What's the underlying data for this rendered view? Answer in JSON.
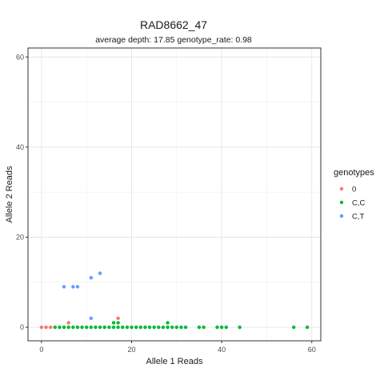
{
  "chart_data": {
    "type": "scatter",
    "title": "RAD8662_47",
    "subtitle": "average depth:  17.85  genotype_rate:  0.98",
    "xlabel": "Allele 1 Reads",
    "ylabel": "Allele 2 Reads",
    "xlim": [
      -3,
      62
    ],
    "ylim": [
      -3,
      62
    ],
    "x_ticks": [
      0,
      20,
      40,
      60
    ],
    "y_ticks": [
      0,
      20,
      40,
      60
    ],
    "x_tick_labels": [
      "0",
      "20",
      "40",
      "60"
    ],
    "y_tick_labels": [
      "0",
      "20",
      "40",
      "60"
    ],
    "grid": true,
    "legend_position": "right",
    "legend_title": "genotypes",
    "series": [
      {
        "name": "0",
        "color": "#F8766D",
        "points": [
          [
            0,
            0
          ],
          [
            1,
            0
          ],
          [
            2,
            0
          ],
          [
            6,
            1
          ],
          [
            17,
            2
          ]
        ]
      },
      {
        "name": "C,C",
        "color": "#00BA38",
        "points": [
          [
            3,
            0
          ],
          [
            4,
            0
          ],
          [
            5,
            0
          ],
          [
            6,
            0
          ],
          [
            7,
            0
          ],
          [
            8,
            0
          ],
          [
            9,
            0
          ],
          [
            10,
            0
          ],
          [
            11,
            0
          ],
          [
            12,
            0
          ],
          [
            13,
            0
          ],
          [
            14,
            0
          ],
          [
            15,
            0
          ],
          [
            16,
            0
          ],
          [
            17,
            0
          ],
          [
            18,
            0
          ],
          [
            19,
            0
          ],
          [
            20,
            0
          ],
          [
            21,
            0
          ],
          [
            22,
            0
          ],
          [
            23,
            0
          ],
          [
            24,
            0
          ],
          [
            25,
            0
          ],
          [
            26,
            0
          ],
          [
            27,
            0
          ],
          [
            28,
            0
          ],
          [
            29,
            0
          ],
          [
            30,
            0
          ],
          [
            31,
            0
          ],
          [
            32,
            0
          ],
          [
            35,
            0
          ],
          [
            36,
            0
          ],
          [
            39,
            0
          ],
          [
            40,
            0
          ],
          [
            41,
            0
          ],
          [
            44,
            0
          ],
          [
            56,
            0
          ],
          [
            59,
            0
          ],
          [
            16,
            1
          ],
          [
            17,
            1
          ],
          [
            28,
            1
          ]
        ]
      },
      {
        "name": "C,T",
        "color": "#619CFF",
        "points": [
          [
            5,
            9
          ],
          [
            7,
            9
          ],
          [
            8,
            9
          ],
          [
            11,
            11
          ],
          [
            13,
            12
          ],
          [
            11,
            2
          ]
        ]
      }
    ]
  }
}
